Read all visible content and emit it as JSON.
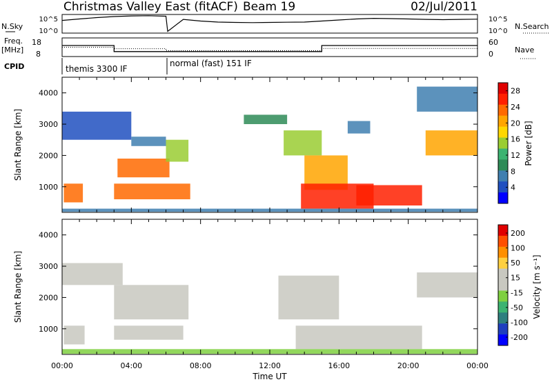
{
  "header": {
    "title": "Christmas Valley East (fitACF)",
    "beam": "Beam 19",
    "date": "02/Jul/2011"
  },
  "colors": {
    "velocity_ground": "#c8c8c0",
    "power_scale": [
      "#0000ff",
      "#2050c0",
      "#3f7fb0",
      "#2e8b57",
      "#3cb371",
      "#9acd32",
      "#ffd700",
      "#ffa500",
      "#ff6a00",
      "#ff2000",
      "#e00000"
    ],
    "velocity_scale": [
      "#0000ff",
      "#1f3fbf",
      "#2e7f7f",
      "#3cb371",
      "#7fd040",
      "#c8c8c0",
      "#c8c8c0",
      "#ffd040",
      "#ff9000",
      "#ff5000",
      "#e00000"
    ]
  },
  "chart_data": [
    {
      "type": "line",
      "name": "noise-panel",
      "left_labels": [
        "N.Sky",
        "10^5",
        "10^0"
      ],
      "right_labels": [
        "10^5",
        "10^0",
        "N.Search"
      ],
      "series": [
        {
          "name": "N.Sky",
          "x": [
            0,
            1,
            2,
            3,
            4,
            5,
            6,
            6.1,
            7,
            8,
            9,
            10,
            11,
            12,
            13,
            14,
            15,
            16,
            17,
            18,
            19,
            20,
            21,
            22,
            23,
            24
          ],
          "y": [
            3000,
            8000,
            20000,
            40000,
            60000,
            70000,
            50000,
            2,
            6000,
            2000,
            1000,
            800,
            700,
            800,
            900,
            1000,
            2000,
            4000,
            8000,
            12000,
            10000,
            8000,
            6000,
            5000,
            6000,
            7000
          ]
        }
      ]
    },
    {
      "type": "line",
      "name": "frequency-panel",
      "left_labels": [
        "Freq.",
        "[MHz]",
        "18",
        "8"
      ],
      "right_labels": [
        "60",
        "0",
        "Nave"
      ],
      "series": [
        {
          "name": "Freq.",
          "x": [
            0,
            3,
            3,
            15,
            15,
            24
          ],
          "y": [
            14,
            14,
            10.5,
            10.5,
            14,
            14
          ]
        },
        {
          "name": "Nave",
          "x": [
            0,
            3,
            3,
            6,
            6,
            15,
            15,
            24
          ],
          "y": [
            30,
            30,
            25,
            25,
            18,
            18,
            26,
            26
          ]
        }
      ]
    },
    {
      "type": "table",
      "name": "cpid-bar",
      "label": "CPID",
      "segments": [
        {
          "start": 0,
          "end": 6,
          "text": "themis 3300 IF"
        },
        {
          "start": 6,
          "end": 24,
          "text": "normal (fast) 151 IF"
        }
      ]
    },
    {
      "type": "heatmap",
      "name": "power",
      "ylabel": "Slant Range [km]",
      "xlim": [
        0,
        24
      ],
      "ylim": [
        180,
        4500
      ],
      "yticks": [
        "1000",
        "2000",
        "3000",
        "4000"
      ],
      "colorbar": {
        "label": "Power [dB]",
        "ticks": [
          "4",
          "8",
          "12",
          "16",
          "20",
          "24",
          "28"
        ],
        "range": [
          0,
          30
        ]
      },
      "regions": [
        {
          "t0": 0.1,
          "t1": 1.2,
          "r0": 500,
          "r1": 1100,
          "level": 22
        },
        {
          "t0": 3.0,
          "t1": 7.4,
          "r0": 600,
          "r1": 1100,
          "level": 22
        },
        {
          "t0": 3.2,
          "t1": 6.2,
          "r0": 1300,
          "r1": 1900,
          "level": 24
        },
        {
          "t0": 6.0,
          "t1": 7.3,
          "r0": 1800,
          "r1": 2500,
          "level": 14
        },
        {
          "t0": 0.0,
          "t1": 4.0,
          "r0": 2500,
          "r1": 3400,
          "level": 5
        },
        {
          "t0": 4.0,
          "t1": 6.0,
          "r0": 2300,
          "r1": 2600,
          "level": 6
        },
        {
          "t0": 10.5,
          "t1": 13.0,
          "r0": 3000,
          "r1": 3300,
          "level": 10
        },
        {
          "t0": 12.8,
          "t1": 15.0,
          "r0": 2000,
          "r1": 2800,
          "level": 14
        },
        {
          "t0": 14.0,
          "t1": 16.5,
          "r0": 900,
          "r1": 2000,
          "level": 20
        },
        {
          "t0": 13.8,
          "t1": 18.0,
          "r0": 300,
          "r1": 1100,
          "level": 27
        },
        {
          "t0": 17.0,
          "t1": 20.8,
          "r0": 400,
          "r1": 1050,
          "level": 27
        },
        {
          "t0": 16.5,
          "t1": 17.8,
          "r0": 2700,
          "r1": 3100,
          "level": 6
        },
        {
          "t0": 21.0,
          "t1": 24.0,
          "r0": 2000,
          "r1": 2800,
          "level": 20
        },
        {
          "t0": 20.5,
          "t1": 24.0,
          "r0": 3400,
          "r1": 4200,
          "level": 6
        },
        {
          "t0": 0.0,
          "t1": 24.0,
          "r0": 200,
          "r1": 300,
          "level": 8
        }
      ]
    },
    {
      "type": "heatmap",
      "name": "velocity",
      "ylabel": "Slant Range [km]",
      "xlabel": "Time UT",
      "xlim": [
        0,
        24
      ],
      "ylim": [
        180,
        4500
      ],
      "xticks": [
        "00:00",
        "04:00",
        "08:00",
        "12:00",
        "16:00",
        "20:00",
        "00:00"
      ],
      "yticks": [
        "1000",
        "2000",
        "3000",
        "4000"
      ],
      "colorbar": {
        "label": "Velocity [m s⁻¹]",
        "ticks": [
          "200",
          "100",
          "50",
          "15",
          "-15",
          "-50",
          "-100",
          "-200"
        ],
        "range": [
          -250,
          250
        ]
      },
      "regions": [
        {
          "t0": 0.1,
          "t1": 1.3,
          "r0": 500,
          "r1": 1100,
          "level": 0
        },
        {
          "t0": 3.0,
          "t1": 7.0,
          "r0": 650,
          "r1": 1100,
          "level": 45
        },
        {
          "t0": 3.0,
          "t1": 7.3,
          "r0": 1300,
          "r1": 2400,
          "level": 0
        },
        {
          "t0": 0.0,
          "t1": 3.5,
          "r0": 2400,
          "r1": 3100,
          "level": 0
        },
        {
          "t0": 12.5,
          "t1": 16.0,
          "r0": 1300,
          "r1": 2700,
          "level": 30
        },
        {
          "t0": 13.5,
          "t1": 20.8,
          "r0": 350,
          "r1": 1100,
          "level": 0
        },
        {
          "t0": 20.5,
          "t1": 24.0,
          "r0": 2000,
          "r1": 2800,
          "level": 0
        },
        {
          "t0": 0.0,
          "t1": 24.0,
          "r0": 200,
          "r1": 350,
          "level": -60
        }
      ]
    }
  ]
}
